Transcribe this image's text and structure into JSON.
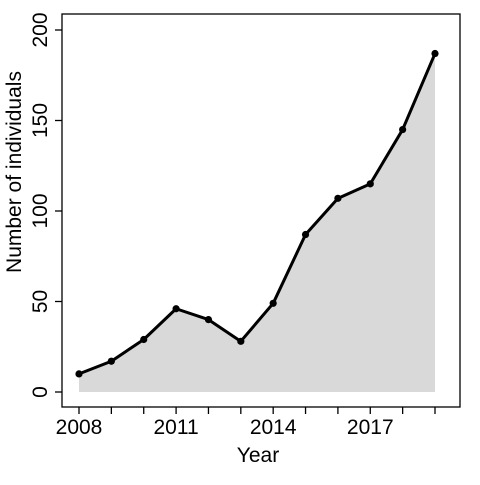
{
  "chart_data": {
    "type": "area",
    "title": "",
    "xlabel": "Year",
    "ylabel": "Number of individuals",
    "x": [
      2008,
      2009,
      2010,
      2011,
      2012,
      2013,
      2014,
      2015,
      2016,
      2017,
      2018,
      2019
    ],
    "series": [
      {
        "values": [
          10,
          17,
          29,
          46,
          40,
          28,
          49,
          87,
          107,
          115,
          145,
          187
        ]
      }
    ],
    "xlim": [
      2008,
      2019
    ],
    "ylim": [
      0,
      200
    ],
    "x_ticks": [
      2008,
      2009,
      2010,
      2011,
      2012,
      2013,
      2014,
      2015,
      2016,
      2017,
      2018,
      2019
    ],
    "x_tick_labels": [
      "2008",
      "",
      "",
      "2011",
      "",
      "",
      "2014",
      "",
      "",
      "2017",
      "",
      ""
    ],
    "y_ticks": [
      0,
      50,
      100,
      150,
      200
    ],
    "y_tick_labels": [
      "0",
      "50",
      "100",
      "150",
      "200"
    ],
    "grid": false,
    "legend": "none",
    "colors": {
      "fill": "#d9d9d9",
      "line": "#000000",
      "marker": "#000000",
      "frame": "#000000"
    }
  }
}
